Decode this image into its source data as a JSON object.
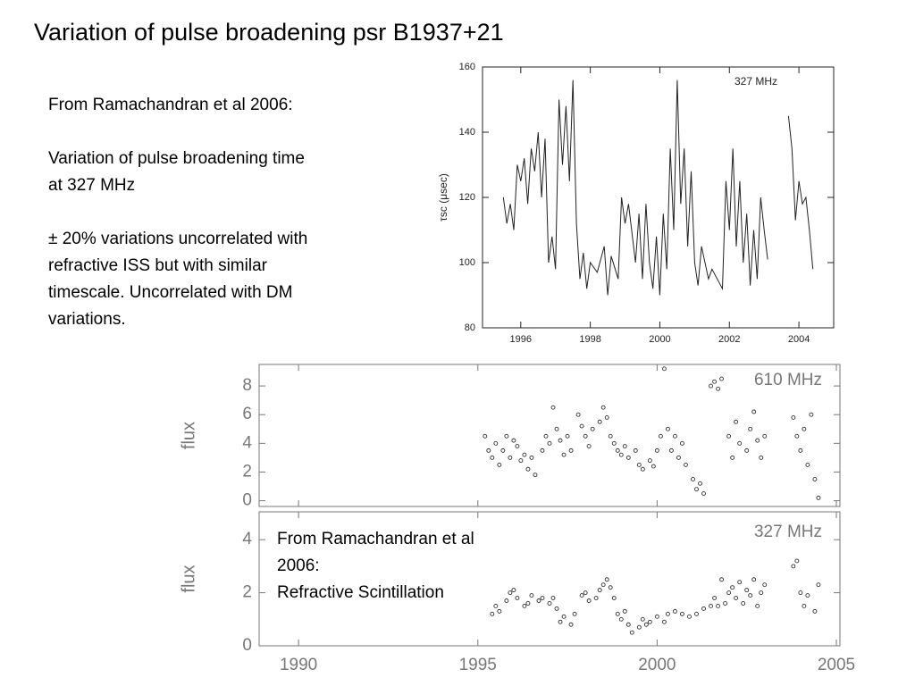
{
  "title": "Variation of pulse broadening psr B1937+21",
  "notes": [
    [
      "From Ramachandran et al 2006:"
    ],
    [
      "Variation of pulse broadening time",
      "at 327 MHz"
    ],
    [
      "± 20% variations uncorrelated with",
      "refractive ISS but with similar",
      "timescale.  Uncorrelated with DM",
      "variations."
    ]
  ],
  "chart_data": [
    {
      "type": "line",
      "annotation": "327 MHz",
      "ylabel": "τsc (μsec)",
      "color": "#222",
      "xlim": [
        1994.9,
        2005.0
      ],
      "xticks": [
        1996,
        1998,
        2000,
        2002,
        2004
      ],
      "ylim": [
        80,
        160
      ],
      "yticks": [
        80,
        100,
        120,
        140,
        160
      ],
      "x": [
        1995.5,
        1995.6,
        1995.7,
        1995.8,
        1995.9,
        1996.0,
        1996.1,
        1996.2,
        1996.3,
        1996.4,
        1996.5,
        1996.6,
        1996.7,
        1996.8,
        1996.9,
        1997.0,
        1997.1,
        1997.2,
        1997.3,
        1997.4,
        1997.5,
        1997.6,
        1997.7,
        1997.8,
        1997.9,
        1998.0,
        1998.2,
        1998.4,
        1998.5,
        1998.6,
        1998.8,
        1998.9,
        1999.0,
        1999.1,
        1999.3,
        1999.4,
        1999.5,
        1999.6,
        1999.7,
        1999.8,
        1999.9,
        2000.0,
        2000.1,
        2000.2,
        2000.3,
        2000.4,
        2000.5,
        2000.6,
        2000.7,
        2000.8,
        2000.9,
        2001.0,
        2001.1,
        2001.2,
        2001.4,
        2001.5,
        2001.8,
        2001.9,
        2002.0,
        2002.1,
        2002.2,
        2002.3,
        2002.4,
        2002.5,
        2002.6,
        2002.7,
        2002.8,
        2002.9,
        2003.0,
        2003.1,
        2003.4,
        2003.7,
        2003.8,
        2003.9,
        2004.0,
        2004.1,
        2004.2,
        2004.3,
        2004.4
      ],
      "values": [
        120,
        112,
        118,
        110,
        130,
        125,
        132,
        118,
        135,
        128,
        140,
        120,
        138,
        100,
        108,
        98,
        150,
        130,
        148,
        125,
        156,
        112,
        95,
        103,
        92,
        100,
        97,
        105,
        90,
        102,
        95,
        120,
        112,
        118,
        100,
        115,
        95,
        118,
        100,
        92,
        108,
        90,
        115,
        98,
        135,
        110,
        156,
        118,
        135,
        105,
        128,
        100,
        93,
        105,
        95,
        98,
        92,
        125,
        110,
        135,
        105,
        125,
        100,
        115,
        93,
        110,
        95,
        120,
        110,
        101,
        null,
        145,
        135,
        113,
        125,
        118,
        120,
        110,
        98
      ]
    },
    {
      "type": "scatter",
      "annotation": "610 MHz",
      "ylabel": "flux",
      "color": "#333",
      "xtick_labels": false,
      "xlim": [
        1988.9,
        2005.1
      ],
      "xticks": [
        1990,
        1995,
        2000,
        2005
      ],
      "ylim": [
        -0.4,
        9.5
      ],
      "yticks": [
        0,
        2,
        4,
        6,
        8
      ],
      "x": [
        1995.2,
        1995.3,
        1995.4,
        1995.5,
        1995.6,
        1995.7,
        1995.8,
        1995.9,
        1996.0,
        1996.1,
        1996.2,
        1996.3,
        1996.4,
        1996.5,
        1996.6,
        1996.8,
        1996.9,
        1997.0,
        1997.1,
        1997.2,
        1997.3,
        1997.4,
        1997.5,
        1997.6,
        1997.8,
        1997.9,
        1998.0,
        1998.1,
        1998.2,
        1998.4,
        1998.5,
        1998.6,
        1998.7,
        1998.8,
        1998.9,
        1999.0,
        1999.1,
        1999.2,
        1999.4,
        1999.5,
        1999.6,
        1999.8,
        1999.9,
        2000.0,
        2000.1,
        2000.2,
        2000.3,
        2000.4,
        2000.5,
        2000.6,
        2000.7,
        2000.8,
        2001.0,
        2001.1,
        2001.2,
        2001.3,
        2001.5,
        2001.6,
        2001.7,
        2001.8,
        2002.0,
        2002.1,
        2002.2,
        2002.3,
        2002.5,
        2002.6,
        2002.7,
        2002.8,
        2002.9,
        2003.0,
        2003.8,
        2003.9,
        2004.0,
        2004.1,
        2004.2,
        2004.3,
        2004.4,
        2004.5
      ],
      "values": [
        4.5,
        3.5,
        3,
        4,
        2.5,
        3.5,
        4.5,
        3,
        4.2,
        3.8,
        2.8,
        3.2,
        2.2,
        3,
        1.8,
        3.5,
        4.5,
        4,
        6.5,
        5,
        4.2,
        3.2,
        4.5,
        3.5,
        6,
        5.2,
        4.5,
        3.8,
        5,
        5.5,
        6.5,
        5.8,
        4.5,
        4,
        3.5,
        3.2,
        3.8,
        3,
        3.5,
        2.5,
        2.2,
        2.8,
        2.4,
        3.5,
        4.5,
        9.2,
        5,
        3.5,
        4.5,
        3,
        4,
        2.5,
        1.5,
        0.8,
        1.2,
        0.5,
        8,
        8.3,
        7.8,
        8.5,
        4.5,
        3,
        5.5,
        4,
        3.5,
        5,
        6.2,
        4.2,
        3,
        4.5,
        5.8,
        4.5,
        3.5,
        5,
        2.5,
        6,
        1.5,
        0.2
      ]
    },
    {
      "type": "scatter",
      "annotation": "327 MHz",
      "ylabel": "flux",
      "color": "#333",
      "caption": [
        "From Ramachandran et al",
        "2006:",
        "Refractive Scintillation"
      ],
      "xlim": [
        1988.9,
        2005.1
      ],
      "xticks": [
        1990,
        1995,
        2000,
        2005
      ],
      "ylim": [
        0,
        5.05
      ],
      "yticks": [
        0,
        2,
        4
      ],
      "x": [
        1995.4,
        1995.5,
        1995.6,
        1995.8,
        1995.9,
        1996.0,
        1996.1,
        1996.3,
        1996.4,
        1996.5,
        1996.7,
        1996.8,
        1997.0,
        1997.1,
        1997.2,
        1997.3,
        1997.4,
        1997.6,
        1997.7,
        1997.9,
        1998.0,
        1998.1,
        1998.3,
        1998.4,
        1998.5,
        1998.6,
        1998.7,
        1998.8,
        1998.9,
        1999.0,
        1999.1,
        1999.2,
        1999.3,
        1999.5,
        1999.6,
        1999.7,
        1999.8,
        2000.0,
        2000.2,
        2000.3,
        2000.5,
        2000.7,
        2000.9,
        2001.1,
        2001.3,
        2001.5,
        2001.6,
        2001.7,
        2001.8,
        2001.9,
        2002.0,
        2002.1,
        2002.2,
        2002.3,
        2002.4,
        2002.5,
        2002.6,
        2002.7,
        2002.8,
        2002.9,
        2003.0,
        2003.8,
        2003.9,
        2004.0,
        2004.1,
        2004.2,
        2004.4,
        2004.5
      ],
      "values": [
        1.2,
        1.5,
        1.3,
        1.7,
        2,
        2.1,
        1.8,
        1.5,
        1.6,
        1.9,
        1.7,
        1.8,
        1.6,
        1.8,
        1.4,
        0.9,
        1.1,
        0.8,
        1.2,
        1.9,
        2,
        1.7,
        1.8,
        2.1,
        2.3,
        2.5,
        2.2,
        1.8,
        1.2,
        1,
        1.3,
        0.8,
        0.5,
        0.7,
        1,
        0.8,
        0.9,
        1.1,
        0.9,
        1.2,
        1.3,
        1.2,
        1.1,
        1.2,
        1.4,
        1.5,
        1.8,
        1.5,
        2.5,
        1.6,
        2,
        2.2,
        1.8,
        2.4,
        1.6,
        2.1,
        1.9,
        2.5,
        1.5,
        2,
        2.3,
        3,
        3.2,
        2,
        1.5,
        1.9,
        1.3,
        2.3
      ]
    }
  ]
}
